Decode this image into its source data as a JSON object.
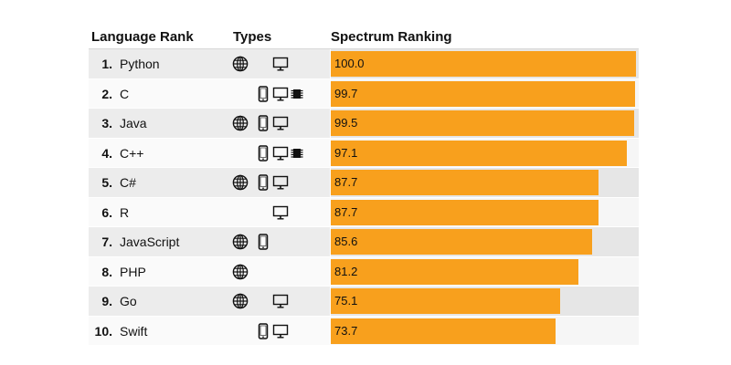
{
  "header": {
    "rank_label": "Language Rank",
    "types_label": "Types",
    "spectrum_label": "Spectrum Ranking"
  },
  "colors": {
    "bar": "#f8a01d",
    "track_odd": "#e6e6e6",
    "track_even": "#f6f6f6"
  },
  "chart_data": {
    "type": "bar",
    "orientation": "horizontal",
    "title": "",
    "xlabel": "Spectrum Ranking",
    "ylabel": "Language Rank",
    "xlim": [
      0,
      100
    ],
    "rows": [
      {
        "rank": "1.",
        "name": "Python",
        "value": 100.0,
        "label": "100.0",
        "types": [
          "web",
          "desktop"
        ]
      },
      {
        "rank": "2.",
        "name": "C",
        "value": 99.7,
        "label": "99.7",
        "types": [
          "mobile",
          "desktop",
          "embedded"
        ]
      },
      {
        "rank": "3.",
        "name": "Java",
        "value": 99.5,
        "label": "99.5",
        "types": [
          "web",
          "mobile",
          "desktop"
        ]
      },
      {
        "rank": "4.",
        "name": "C++",
        "value": 97.1,
        "label": "97.1",
        "types": [
          "mobile",
          "desktop",
          "embedded"
        ]
      },
      {
        "rank": "5.",
        "name": "C#",
        "value": 87.7,
        "label": "87.7",
        "types": [
          "web",
          "mobile",
          "desktop"
        ]
      },
      {
        "rank": "6.",
        "name": "R",
        "value": 87.7,
        "label": "87.7",
        "types": [
          "desktop"
        ]
      },
      {
        "rank": "7.",
        "name": "JavaScript",
        "value": 85.6,
        "label": "85.6",
        "types": [
          "web",
          "mobile"
        ]
      },
      {
        "rank": "8.",
        "name": "PHP",
        "value": 81.2,
        "label": "81.2",
        "types": [
          "web"
        ]
      },
      {
        "rank": "9.",
        "name": "Go",
        "value": 75.1,
        "label": "75.1",
        "types": [
          "web",
          "desktop"
        ]
      },
      {
        "rank": "10.",
        "name": "Swift",
        "value": 73.7,
        "label": "73.7",
        "types": [
          "mobile",
          "desktop"
        ]
      }
    ]
  }
}
